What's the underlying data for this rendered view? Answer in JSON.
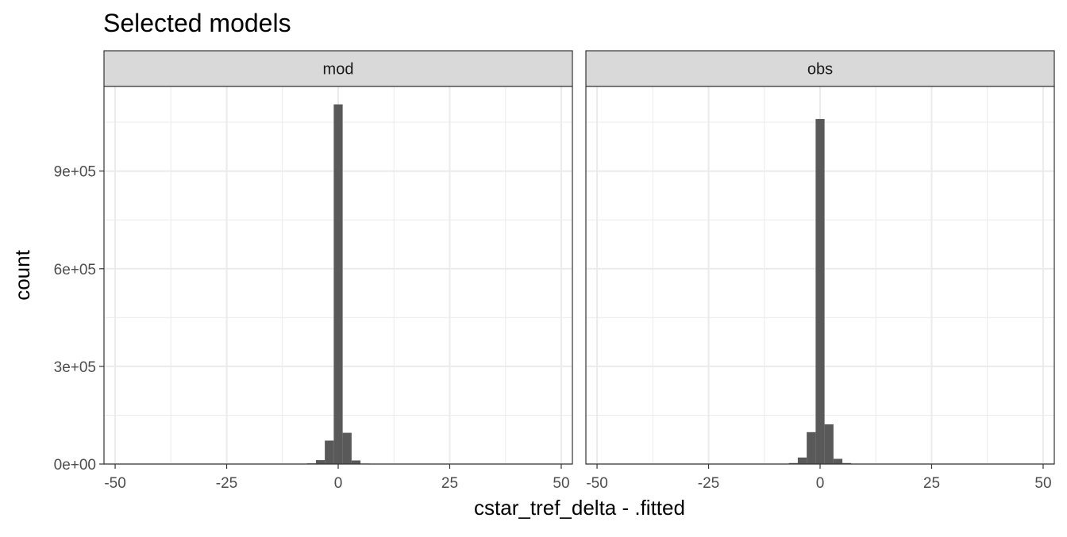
{
  "chart_data": {
    "type": "bar",
    "subtype": "histogram",
    "title": "Selected models",
    "xlabel": "cstar_tref_delta - .fitted",
    "ylabel": "count",
    "xlim": [
      -52.5,
      52.5
    ],
    "ylim": [
      0,
      1160000
    ],
    "x_ticks": [
      -50,
      -25,
      0,
      25,
      50
    ],
    "x_tick_labels": [
      "-50",
      "-25",
      "0",
      "25",
      "50"
    ],
    "y_ticks": [
      0,
      300000,
      600000,
      900000
    ],
    "y_tick_labels": [
      "0e+00",
      "3e+05",
      "6e+05",
      "9e+05"
    ],
    "grid": true,
    "bin_width": 2,
    "bar_color": "#595959",
    "strip_color": "#d9d9d9",
    "panels": [
      {
        "label": "mod",
        "bins": [
          {
            "x": -6,
            "count": 2000
          },
          {
            "x": -4,
            "count": 12000
          },
          {
            "x": -2,
            "count": 72000
          },
          {
            "x": 0,
            "count": 1105000
          },
          {
            "x": 2,
            "count": 96000
          },
          {
            "x": 4,
            "count": 11000
          },
          {
            "x": 6,
            "count": 1500
          }
        ]
      },
      {
        "label": "obs",
        "bins": [
          {
            "x": -6,
            "count": 3000
          },
          {
            "x": -4,
            "count": 20000
          },
          {
            "x": -2,
            "count": 98000
          },
          {
            "x": 0,
            "count": 1060000
          },
          {
            "x": 2,
            "count": 122000
          },
          {
            "x": 4,
            "count": 16000
          },
          {
            "x": 6,
            "count": 3000
          }
        ]
      }
    ]
  }
}
